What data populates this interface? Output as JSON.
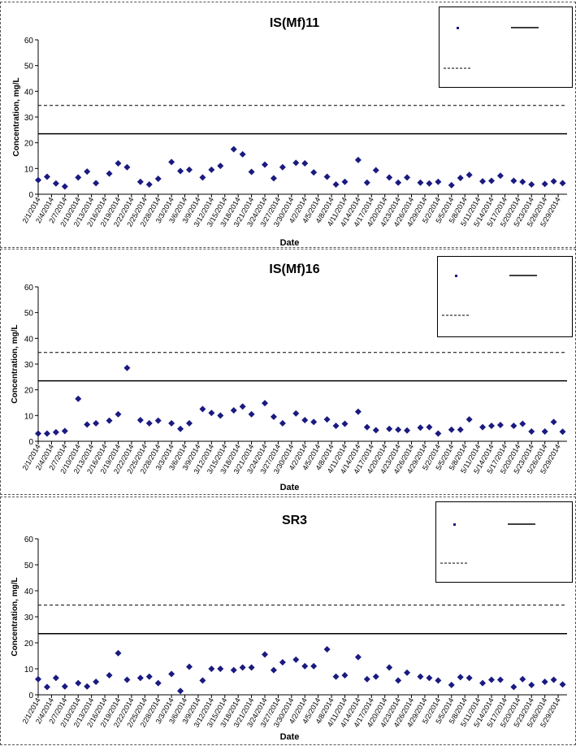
{
  "dates": [
    "2/1/2014",
    "2/4/2014",
    "2/7/2014",
    "2/10/2014",
    "2/13/2014",
    "2/16/2014",
    "2/19/2014",
    "2/22/2014",
    "2/25/2014",
    "2/28/2014",
    "3/3/2014",
    "3/6/2014",
    "3/9/2014",
    "3/12/2014",
    "3/15/2014",
    "3/18/2014",
    "3/21/2014",
    "3/24/2014",
    "3/27/2014",
    "3/30/2014",
    "4/2/2014",
    "4/5/2014",
    "4/8/2014",
    "4/11/2014",
    "4/14/2014",
    "4/17/2014",
    "4/20/2014",
    "4/23/2014",
    "4/26/2014",
    "4/29/2014",
    "5/2/2014",
    "5/5/2014",
    "5/8/2014",
    "5/11/2014",
    "5/14/2014",
    "5/17/2014",
    "5/20/2014",
    "5/23/2014",
    "5/26/2014",
    "5/29/2014"
  ],
  "chart_data": [
    {
      "type": "scatter",
      "title": "IS(Mf)11",
      "xlabel": "Date",
      "ylabel": "Concentration, mg/L",
      "ylim": [
        0,
        60
      ],
      "yticks": [
        0,
        10,
        20,
        30,
        40,
        50,
        60
      ],
      "xlim": [
        "2/1/2014",
        "5/31/2014"
      ],
      "legend": "top-right",
      "grid": false,
      "points": [
        {
          "x": "2/1/2014",
          "y": 5.5
        },
        {
          "x": "2/3/2014",
          "y": 6.8
        },
        {
          "x": "2/5/2014",
          "y": 4.2
        },
        {
          "x": "2/7/2014",
          "y": 3.0
        },
        {
          "x": "2/10/2014",
          "y": 6.5
        },
        {
          "x": "2/12/2014",
          "y": 8.8
        },
        {
          "x": "2/14/2014",
          "y": 4.3
        },
        {
          "x": "2/17/2014",
          "y": 8.0
        },
        {
          "x": "2/19/2014",
          "y": 12.0
        },
        {
          "x": "2/21/2014",
          "y": 10.5
        },
        {
          "x": "2/24/2014",
          "y": 4.8
        },
        {
          "x": "2/26/2014",
          "y": 3.8
        },
        {
          "x": "2/28/2014",
          "y": 6.0
        },
        {
          "x": "3/3/2014",
          "y": 12.5
        },
        {
          "x": "3/5/2014",
          "y": 9.0
        },
        {
          "x": "3/7/2014",
          "y": 9.5
        },
        {
          "x": "3/10/2014",
          "y": 6.5
        },
        {
          "x": "3/12/2014",
          "y": 9.5
        },
        {
          "x": "3/14/2014",
          "y": 11.0
        },
        {
          "x": "3/17/2014",
          "y": 17.5
        },
        {
          "x": "3/19/2014",
          "y": 15.5
        },
        {
          "x": "3/21/2014",
          "y": 8.7
        },
        {
          "x": "3/24/2014",
          "y": 11.5
        },
        {
          "x": "3/26/2014",
          "y": 6.2
        },
        {
          "x": "3/28/2014",
          "y": 10.5
        },
        {
          "x": "3/31/2014",
          "y": 12.2
        },
        {
          "x": "4/2/2014",
          "y": 12.0
        },
        {
          "x": "4/4/2014",
          "y": 8.5
        },
        {
          "x": "4/7/2014",
          "y": 6.8
        },
        {
          "x": "4/9/2014",
          "y": 3.8
        },
        {
          "x": "4/11/2014",
          "y": 4.8
        },
        {
          "x": "4/14/2014",
          "y": 13.3
        },
        {
          "x": "4/16/2014",
          "y": 4.5
        },
        {
          "x": "4/18/2014",
          "y": 9.3
        },
        {
          "x": "4/21/2014",
          "y": 6.5
        },
        {
          "x": "4/23/2014",
          "y": 4.5
        },
        {
          "x": "4/25/2014",
          "y": 6.5
        },
        {
          "x": "4/28/2014",
          "y": 4.5
        },
        {
          "x": "4/30/2014",
          "y": 4.2
        },
        {
          "x": "5/2/2014",
          "y": 4.8
        },
        {
          "x": "5/5/2014",
          "y": 3.5
        },
        {
          "x": "5/7/2014",
          "y": 6.3
        },
        {
          "x": "5/9/2014",
          "y": 7.5
        },
        {
          "x": "5/12/2014",
          "y": 5.0
        },
        {
          "x": "5/14/2014",
          "y": 5.2
        },
        {
          "x": "5/16/2014",
          "y": 7.2
        },
        {
          "x": "5/19/2014",
          "y": 5.2
        },
        {
          "x": "5/21/2014",
          "y": 4.8
        },
        {
          "x": "5/23/2014",
          "y": 3.8
        },
        {
          "x": "5/26/2014",
          "y": 4.0
        },
        {
          "x": "5/28/2014",
          "y": 5.0
        },
        {
          "x": "5/30/2014",
          "y": 4.3
        }
      ],
      "hlines": [
        {
          "y": 23.5,
          "style": "solid"
        },
        {
          "y": 34.5,
          "style": "dashed"
        }
      ]
    },
    {
      "type": "scatter",
      "title": "IS(Mf)16",
      "xlabel": "Date",
      "ylabel": "Concentration, mg/L",
      "ylim": [
        0,
        60
      ],
      "yticks": [
        0,
        10,
        20,
        30,
        40,
        50,
        60
      ],
      "xlim": [
        "2/1/2014",
        "5/31/2014"
      ],
      "legend": "top-right",
      "grid": false,
      "points": [
        {
          "x": "2/1/2014",
          "y": 3.0
        },
        {
          "x": "2/3/2014",
          "y": 3.0
        },
        {
          "x": "2/5/2014",
          "y": 3.5
        },
        {
          "x": "2/7/2014",
          "y": 4.0
        },
        {
          "x": "2/10/2014",
          "y": 16.5
        },
        {
          "x": "2/12/2014",
          "y": 6.5
        },
        {
          "x": "2/14/2014",
          "y": 7.0
        },
        {
          "x": "2/17/2014",
          "y": 8.0
        },
        {
          "x": "2/19/2014",
          "y": 10.5
        },
        {
          "x": "2/21/2014",
          "y": 28.5
        },
        {
          "x": "2/24/2014",
          "y": 8.2
        },
        {
          "x": "2/26/2014",
          "y": 7.0
        },
        {
          "x": "2/28/2014",
          "y": 8.0
        },
        {
          "x": "3/3/2014",
          "y": 7.0
        },
        {
          "x": "3/5/2014",
          "y": 4.8
        },
        {
          "x": "3/7/2014",
          "y": 7.0
        },
        {
          "x": "3/10/2014",
          "y": 12.5
        },
        {
          "x": "3/12/2014",
          "y": 11.0
        },
        {
          "x": "3/14/2014",
          "y": 10.0
        },
        {
          "x": "3/17/2014",
          "y": 12.0
        },
        {
          "x": "3/19/2014",
          "y": 13.5
        },
        {
          "x": "3/21/2014",
          "y": 10.5
        },
        {
          "x": "3/24/2014",
          "y": 14.8
        },
        {
          "x": "3/26/2014",
          "y": 9.5
        },
        {
          "x": "3/28/2014",
          "y": 7.0
        },
        {
          "x": "3/31/2014",
          "y": 10.8
        },
        {
          "x": "4/2/2014",
          "y": 8.2
        },
        {
          "x": "4/4/2014",
          "y": 7.5
        },
        {
          "x": "4/7/2014",
          "y": 8.5
        },
        {
          "x": "4/9/2014",
          "y": 6.0
        },
        {
          "x": "4/11/2014",
          "y": 6.8
        },
        {
          "x": "4/14/2014",
          "y": 11.5
        },
        {
          "x": "4/16/2014",
          "y": 5.5
        },
        {
          "x": "4/18/2014",
          "y": 4.3
        },
        {
          "x": "4/21/2014",
          "y": 4.8
        },
        {
          "x": "4/23/2014",
          "y": 4.5
        },
        {
          "x": "4/25/2014",
          "y": 4.2
        },
        {
          "x": "4/28/2014",
          "y": 5.3
        },
        {
          "x": "4/30/2014",
          "y": 5.5
        },
        {
          "x": "5/2/2014",
          "y": 3.0
        },
        {
          "x": "5/5/2014",
          "y": 4.5
        },
        {
          "x": "5/7/2014",
          "y": 4.5
        },
        {
          "x": "5/9/2014",
          "y": 8.5
        },
        {
          "x": "5/12/2014",
          "y": 5.5
        },
        {
          "x": "5/14/2014",
          "y": 6.0
        },
        {
          "x": "5/16/2014",
          "y": 6.3
        },
        {
          "x": "5/19/2014",
          "y": 6.0
        },
        {
          "x": "5/21/2014",
          "y": 6.8
        },
        {
          "x": "5/23/2014",
          "y": 3.8
        },
        {
          "x": "5/26/2014",
          "y": 3.8
        },
        {
          "x": "5/28/2014",
          "y": 7.5
        },
        {
          "x": "5/30/2014",
          "y": 3.7
        }
      ],
      "hlines": [
        {
          "y": 23.5,
          "style": "solid"
        },
        {
          "y": 34.5,
          "style": "dashed"
        }
      ]
    },
    {
      "type": "scatter",
      "title": "SR3",
      "xlabel": "Date",
      "ylabel": "Concentration, mg/L",
      "ylim": [
        0,
        60
      ],
      "yticks": [
        0,
        10,
        20,
        30,
        40,
        50,
        60
      ],
      "xlim": [
        "2/1/2014",
        "5/31/2014"
      ],
      "legend": "top-right",
      "grid": false,
      "points": [
        {
          "x": "2/1/2014",
          "y": 6.0
        },
        {
          "x": "2/3/2014",
          "y": 3.0
        },
        {
          "x": "2/5/2014",
          "y": 6.5
        },
        {
          "x": "2/7/2014",
          "y": 3.2
        },
        {
          "x": "2/10/2014",
          "y": 4.5
        },
        {
          "x": "2/12/2014",
          "y": 3.2
        },
        {
          "x": "2/14/2014",
          "y": 5.0
        },
        {
          "x": "2/17/2014",
          "y": 7.5
        },
        {
          "x": "2/19/2014",
          "y": 16.0
        },
        {
          "x": "2/21/2014",
          "y": 5.8
        },
        {
          "x": "2/24/2014",
          "y": 6.5
        },
        {
          "x": "2/26/2014",
          "y": 7.0
        },
        {
          "x": "2/28/2014",
          "y": 4.5
        },
        {
          "x": "3/3/2014",
          "y": 8.0
        },
        {
          "x": "3/5/2014",
          "y": 1.5
        },
        {
          "x": "3/7/2014",
          "y": 10.8
        },
        {
          "x": "3/10/2014",
          "y": 5.5
        },
        {
          "x": "3/12/2014",
          "y": 10.0
        },
        {
          "x": "3/14/2014",
          "y": 10.0
        },
        {
          "x": "3/17/2014",
          "y": 9.5
        },
        {
          "x": "3/19/2014",
          "y": 10.5
        },
        {
          "x": "3/21/2014",
          "y": 10.5
        },
        {
          "x": "3/24/2014",
          "y": 15.5
        },
        {
          "x": "3/26/2014",
          "y": 9.5
        },
        {
          "x": "3/28/2014",
          "y": 12.5
        },
        {
          "x": "3/31/2014",
          "y": 13.5
        },
        {
          "x": "4/2/2014",
          "y": 11.0
        },
        {
          "x": "4/4/2014",
          "y": 11.0
        },
        {
          "x": "4/7/2014",
          "y": 17.5
        },
        {
          "x": "4/9/2014",
          "y": 7.0
        },
        {
          "x": "4/11/2014",
          "y": 7.5
        },
        {
          "x": "4/14/2014",
          "y": 14.5
        },
        {
          "x": "4/16/2014",
          "y": 6.0
        },
        {
          "x": "4/18/2014",
          "y": 7.0
        },
        {
          "x": "4/21/2014",
          "y": 10.5
        },
        {
          "x": "4/23/2014",
          "y": 5.5
        },
        {
          "x": "4/25/2014",
          "y": 8.5
        },
        {
          "x": "4/28/2014",
          "y": 7.0
        },
        {
          "x": "4/30/2014",
          "y": 6.5
        },
        {
          "x": "5/2/2014",
          "y": 5.5
        },
        {
          "x": "5/5/2014",
          "y": 3.8
        },
        {
          "x": "5/7/2014",
          "y": 6.8
        },
        {
          "x": "5/9/2014",
          "y": 6.5
        },
        {
          "x": "5/12/2014",
          "y": 4.5
        },
        {
          "x": "5/14/2014",
          "y": 5.8
        },
        {
          "x": "5/16/2014",
          "y": 5.8
        },
        {
          "x": "5/19/2014",
          "y": 3.0
        },
        {
          "x": "5/21/2014",
          "y": 6.0
        },
        {
          "x": "5/23/2014",
          "y": 3.8
        },
        {
          "x": "5/26/2014",
          "y": 5.0
        },
        {
          "x": "5/28/2014",
          "y": 5.8
        },
        {
          "x": "5/30/2014",
          "y": 4.0
        }
      ],
      "hlines": [
        {
          "y": 23.5,
          "style": "solid"
        },
        {
          "y": 34.5,
          "style": "dashed"
        }
      ]
    }
  ],
  "colors": {
    "marker": "#1a1a80",
    "line": "#000000",
    "text": "#000000"
  }
}
